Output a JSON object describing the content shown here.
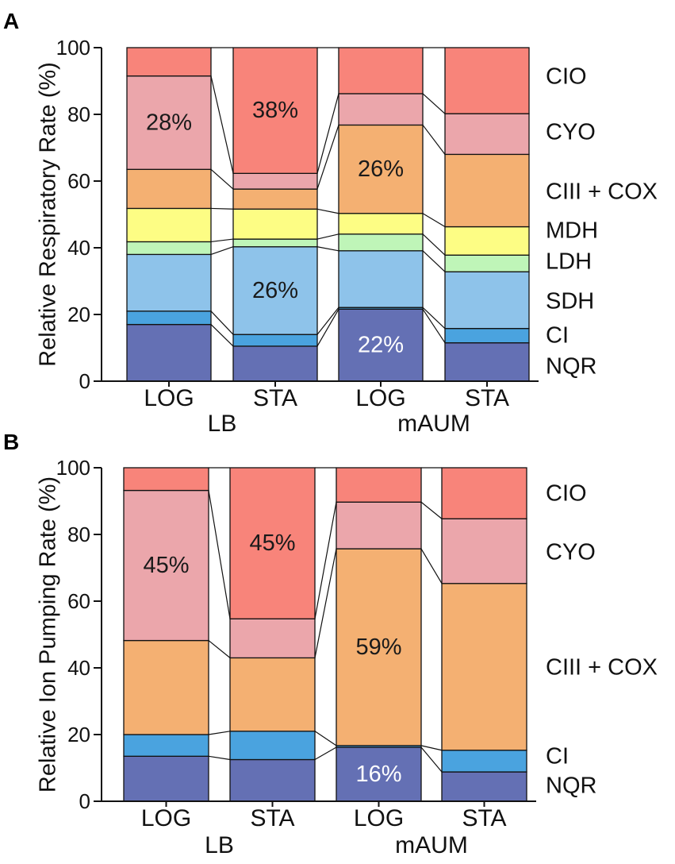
{
  "figure": {
    "panels": [
      {
        "label": "A",
        "chart_data": {
          "type": "bar",
          "stacked": true,
          "title": "",
          "ylabel": "Relative Respiratory Rate (%)",
          "xlabel": "",
          "ylim": [
            0,
            100
          ],
          "yticks": [
            0,
            20,
            40,
            60,
            80,
            100
          ],
          "categories": [
            "LOG",
            "STA",
            "LOG",
            "STA"
          ],
          "groups": [
            {
              "label": "LB",
              "span": [
                0,
                1
              ]
            },
            {
              "label": "mAUM",
              "span": [
                2,
                3
              ]
            }
          ],
          "series": [
            {
              "name": "NQR",
              "color": "#6470b4",
              "values": [
                17,
                10.5,
                21.6,
                11.5
              ]
            },
            {
              "name": "CI",
              "color": "#4aa3df",
              "values": [
                4,
                3.5,
                0.5,
                4.3
              ]
            },
            {
              "name": "SDH",
              "color": "#8ec3ea",
              "values": [
                17,
                26.3,
                17,
                17
              ]
            },
            {
              "name": "LDH",
              "color": "#bff5b8",
              "values": [
                3.8,
                2.3,
                5,
                5
              ]
            },
            {
              "name": "MDH",
              "color": "#fdfd84",
              "values": [
                10,
                9,
                6.2,
                8.5
              ]
            },
            {
              "name": "CIII + COX",
              "color": "#f4b072",
              "values": [
                11.7,
                6,
                26.5,
                21.7
              ]
            },
            {
              "name": "CYO",
              "color": "#eba6ab",
              "values": [
                28,
                4.7,
                9.4,
                12.2
              ]
            },
            {
              "name": "CIO",
              "color": "#f8847a",
              "values": [
                8.5,
                37.7,
                13.8,
                19.8
              ]
            }
          ],
          "annotations": [
            {
              "text": "28%",
              "series": "CYO",
              "bar": 0,
              "color": "#1a1a1a"
            },
            {
              "text": "38%",
              "series": "CIO",
              "bar": 1,
              "color": "#1a1a1a"
            },
            {
              "text": "26%",
              "series": "SDH",
              "bar": 1,
              "color": "#1a1a1a"
            },
            {
              "text": "26%",
              "series": "CIII + COX",
              "bar": 2,
              "color": "#1a1a1a"
            },
            {
              "text": "22%",
              "series": "NQR",
              "bar": 2,
              "color": "#ffffff"
            }
          ]
        }
      },
      {
        "label": "B",
        "chart_data": {
          "type": "bar",
          "stacked": true,
          "title": "",
          "ylabel": "Relative Ion Pumping Rate (%)",
          "xlabel": "",
          "ylim": [
            0,
            100
          ],
          "yticks": [
            0,
            20,
            40,
            60,
            80,
            100
          ],
          "categories": [
            "LOG",
            "STA",
            "LOG",
            "STA"
          ],
          "groups": [
            {
              "label": "LB",
              "span": [
                0,
                1
              ]
            },
            {
              "label": "mAUM",
              "span": [
                2,
                3
              ]
            }
          ],
          "series": [
            {
              "name": "NQR",
              "color": "#6470b4",
              "values": [
                13.5,
                12.5,
                16.2,
                8.8
              ]
            },
            {
              "name": "CI",
              "color": "#4aa3df",
              "values": [
                6.5,
                8.5,
                0.5,
                6.5
              ]
            },
            {
              "name": "CIII + COX",
              "color": "#f4b072",
              "values": [
                28.2,
                22,
                59,
                50
              ]
            },
            {
              "name": "CYO",
              "color": "#eba6ab",
              "values": [
                45,
                11.7,
                14,
                19.4
              ]
            },
            {
              "name": "CIO",
              "color": "#f8847a",
              "values": [
                6.8,
                45.3,
                10.3,
                15.3
              ]
            }
          ],
          "annotations": [
            {
              "text": "45%",
              "series": "CYO",
              "bar": 0,
              "color": "#1a1a1a"
            },
            {
              "text": "45%",
              "series": "CIO",
              "bar": 1,
              "color": "#1a1a1a"
            },
            {
              "text": "59%",
              "series": "CIII + COX",
              "bar": 2,
              "color": "#1a1a1a"
            },
            {
              "text": "16%",
              "series": "NQR",
              "bar": 2,
              "color": "#ffffff"
            }
          ]
        }
      }
    ]
  }
}
